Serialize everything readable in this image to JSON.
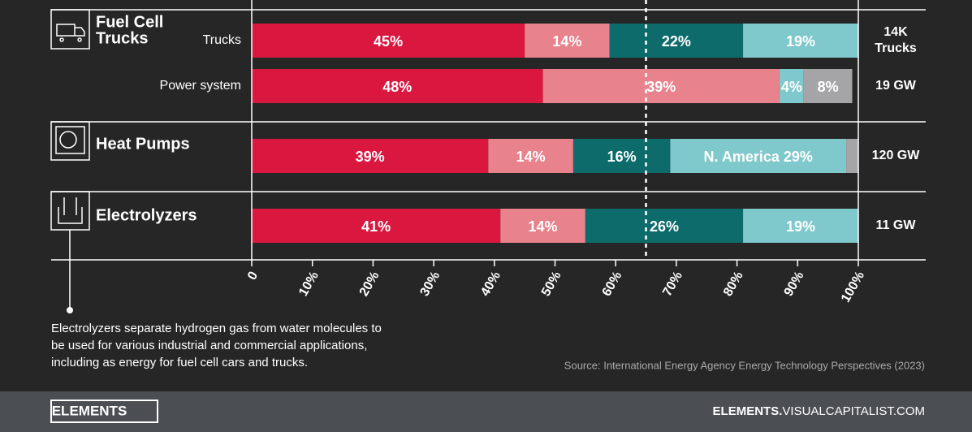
{
  "chart_data": {
    "type": "stacked-bar-horizontal",
    "groups": [
      [
        "Fuel Cell",
        "Trucks"
      ],
      [
        "Heat Pumps"
      ],
      [
        "Electrolyzers"
      ]
    ],
    "group_rows": [
      [
        0,
        1
      ],
      [
        2
      ],
      [
        3
      ]
    ],
    "categories": [
      "Trucks",
      "Power system",
      null,
      null
    ],
    "totals": [
      [
        "14K",
        "Trucks"
      ],
      [
        "19 GW"
      ],
      [
        "120 GW"
      ],
      [
        "11 GW"
      ]
    ],
    "series": [
      {
        "color": "#d9173f",
        "values": [
          45,
          48,
          39,
          41
        ],
        "value_labels": [
          "45%",
          "48%",
          "39%",
          "41%"
        ]
      },
      {
        "color": "#e8828c",
        "values": [
          14,
          39,
          14,
          14
        ],
        "value_labels": [
          "14%",
          "39%",
          "14%",
          "14%"
        ]
      },
      {
        "color": "#0e6b6c",
        "values": [
          22,
          null,
          16,
          26
        ],
        "value_labels": [
          "22%",
          null,
          "16%",
          "26%"
        ]
      },
      {
        "color": "#7fc8cc",
        "values": [
          19,
          4,
          29,
          19
        ],
        "value_labels": [
          "19%",
          "4%",
          "N. America 29%",
          "19%"
        ]
      },
      {
        "color": "#a5a5a7",
        "values": [
          null,
          8,
          2,
          null
        ],
        "value_labels": [
          null,
          "8%",
          null,
          null
        ]
      }
    ],
    "xlim": [
      0,
      100
    ],
    "xticks": [
      0,
      {
        "value": 10,
        "label": "10%"
      },
      {
        "value": 20,
        "label": "20%"
      },
      {
        "value": 30,
        "label": "30%"
      },
      {
        "value": 40,
        "label": "40%"
      },
      {
        "value": 50,
        "label": "50%"
      },
      {
        "value": 60,
        "label": "60%"
      },
      {
        "value": 70,
        "label": "70%"
      },
      {
        "value": 80,
        "label": "80%"
      },
      {
        "value": 90,
        "label": "90%"
      },
      {
        "value": 100,
        "label": "100%"
      }
    ],
    "reference_line": 65,
    "note": [
      "Electrolyzers separate hydrogen gas from water molecules to",
      "be used for various industrial and commercial applications,",
      "including as energy for fuel cell cars and trucks."
    ],
    "source": "Source: International Energy Agency Energy Technology Perspectives (2023)",
    "footer": {
      "brand": "ELEMENTS",
      "site_bold": "ELEMENTS.",
      "site_rest": "VISUALCAPITALIST.COM"
    }
  }
}
